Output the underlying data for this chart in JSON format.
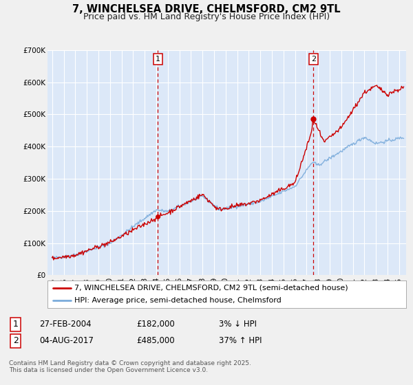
{
  "title": "7, WINCHELSEA DRIVE, CHELMSFORD, CM2 9TL",
  "subtitle": "Price paid vs. HM Land Registry's House Price Index (HPI)",
  "ylim": [
    0,
    700000
  ],
  "yticks": [
    0,
    100000,
    200000,
    300000,
    400000,
    500000,
    600000,
    700000
  ],
  "ytick_labels": [
    "£0",
    "£100K",
    "£200K",
    "£300K",
    "£400K",
    "£500K",
    "£600K",
    "£700K"
  ],
  "xlim_start": 1994.6,
  "xlim_end": 2025.6,
  "xticks": [
    1995,
    1996,
    1997,
    1998,
    1999,
    2000,
    2001,
    2002,
    2003,
    2004,
    2005,
    2006,
    2007,
    2008,
    2009,
    2010,
    2011,
    2012,
    2013,
    2014,
    2015,
    2016,
    2017,
    2018,
    2019,
    2020,
    2021,
    2022,
    2023,
    2024,
    2025
  ],
  "fig_bg_color": "#f0f0f0",
  "plot_bg_color": "#dce8f8",
  "grid_color": "#ffffff",
  "sale1_x": 2004.15,
  "sale1_y": 182000,
  "sale2_x": 2017.59,
  "sale2_y": 485000,
  "vline_color": "#cc0000",
  "red_line_color": "#cc0000",
  "blue_line_color": "#7aabdb",
  "legend_label_red": "7, WINCHELSEA DRIVE, CHELMSFORD, CM2 9TL (semi-detached house)",
  "legend_label_blue": "HPI: Average price, semi-detached house, Chelmsford",
  "note1_date": "27-FEB-2004",
  "note1_price": "£182,000",
  "note1_change": "3% ↓ HPI",
  "note2_date": "04-AUG-2017",
  "note2_price": "£485,000",
  "note2_change": "37% ↑ HPI",
  "footer": "Contains HM Land Registry data © Crown copyright and database right 2025.\nThis data is licensed under the Open Government Licence v3.0.",
  "title_fontsize": 10.5,
  "subtitle_fontsize": 9,
  "tick_fontsize": 7.5,
  "legend_fontsize": 8,
  "note_fontsize": 8.5,
  "footer_fontsize": 6.5
}
